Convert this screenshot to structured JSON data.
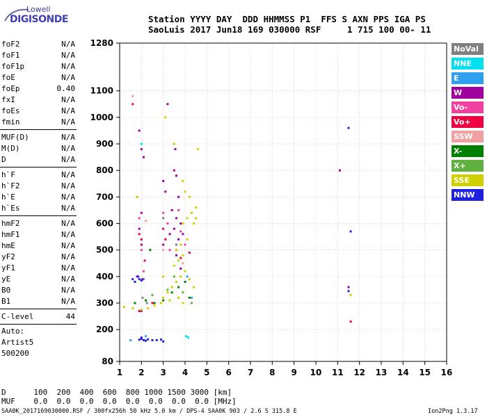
{
  "logo": {
    "line1": "Lowell",
    "line2": "DIGISONDE"
  },
  "header": {
    "line1": "Station YYYY DAY  DDD HHMMSS P1  FFS S AXN PPS IGA PS",
    "line2": "SaoLuis 2017 Jun18 169 030000 RSF     1 715 100 00- 11"
  },
  "params": [
    [
      {
        "label": "foF2",
        "value": "N/A"
      },
      {
        "label": "foF1",
        "value": "N/A"
      },
      {
        "label": "foF1p",
        "value": "N/A"
      },
      {
        "label": "foE",
        "value": "N/A"
      },
      {
        "label": "foEp",
        "value": "0.40"
      },
      {
        "label": "fxI",
        "value": "N/A"
      },
      {
        "label": "foEs",
        "value": "N/A"
      },
      {
        "label": "fmin",
        "value": "N/A"
      }
    ],
    [
      {
        "label": "MUF(D)",
        "value": "N/A"
      },
      {
        "label": "M(D)",
        "value": "N/A"
      },
      {
        "label": "D",
        "value": "N/A"
      }
    ],
    [
      {
        "label": "h`F",
        "value": "N/A"
      },
      {
        "label": "h`F2",
        "value": "N/A"
      },
      {
        "label": "h`E",
        "value": "N/A"
      },
      {
        "label": "h`Es",
        "value": "N/A"
      }
    ],
    [
      {
        "label": "hmF2",
        "value": "N/A"
      },
      {
        "label": "hmF1",
        "value": "N/A"
      },
      {
        "label": "hmE",
        "value": "N/A"
      },
      {
        "label": "yF2",
        "value": "N/A"
      },
      {
        "label": "yF1",
        "value": "N/A"
      },
      {
        "label": "yE",
        "value": "N/A"
      },
      {
        "label": "B0",
        "value": "N/A"
      },
      {
        "label": "B1",
        "value": "N/A"
      }
    ],
    [
      {
        "label": "C-level",
        "value": "44"
      }
    ]
  ],
  "auto": {
    "line1": "Auto:",
    "line2": "Artist5",
    "line3": "500200"
  },
  "legend": [
    {
      "label": "NoVal",
      "color": "#808080"
    },
    {
      "label": "NNE",
      "color": "#00e0f0"
    },
    {
      "label": "E",
      "color": "#30a0f0"
    },
    {
      "label": "W",
      "color": "#a000a0"
    },
    {
      "label": "Vo-",
      "color": "#f040a0"
    },
    {
      "label": "Vo+",
      "color": "#f00040"
    },
    {
      "label": "SSW",
      "color": "#f0a0a0"
    },
    {
      "label": "X-",
      "color": "#008000"
    },
    {
      "label": "X+",
      "color": "#60b040"
    },
    {
      "label": "SSE",
      "color": "#d0d000"
    },
    {
      "label": "NNW",
      "color": "#2020e0"
    }
  ],
  "bottom": {
    "d_row": "D      100  200  400  600  800 1000 1500 3000 [km]",
    "muf_row": "MUF    0.0  0.0  0.0  0.0  0.0  0.0  0.0  0.0 [MHz]"
  },
  "footer": {
    "left": "SAA0K_2017169030000.RSF / 300fx256h 50 kHz 5.0 km / DPS-4 SAA0K 903 / 2.6 S 315.8 E",
    "right": "Ion2Png 1.3.17"
  },
  "chart_data": {
    "type": "scatter",
    "xlabel": "",
    "ylabel": "",
    "xlim": [
      1,
      16
    ],
    "ylim": [
      80,
      1280
    ],
    "x_ticks": [
      "1",
      "2",
      "3",
      "4",
      "5",
      "6",
      "7",
      "8",
      "9",
      "10",
      "11",
      "12",
      "13",
      "14",
      "15",
      "16"
    ],
    "y_ticks": [
      "80",
      "200",
      "300",
      "400",
      "500",
      "600",
      "700",
      "800",
      "900",
      "1000",
      "1100",
      "1280"
    ],
    "y_tick_values": [
      80,
      200,
      300,
      400,
      500,
      600,
      700,
      800,
      900,
      1000,
      1100,
      1280
    ],
    "grid": true,
    "series": [
      {
        "name": "NoVal",
        "values": [
          [
            2.05,
            320
          ],
          [
            2.25,
            300
          ],
          [
            3.0,
            620
          ],
          [
            3.6,
            520
          ]
        ]
      },
      {
        "name": "NNE",
        "values": [
          [
            2.0,
            900
          ],
          [
            4.05,
            175
          ],
          [
            4.15,
            170
          ]
        ]
      },
      {
        "name": "E",
        "values": [
          [
            1.5,
            160
          ],
          [
            2.2,
            175
          ],
          [
            2.1,
            390
          ],
          [
            4.1,
            400
          ],
          [
            4.3,
            320
          ]
        ]
      },
      {
        "name": "W",
        "values": [
          [
            1.9,
            950
          ],
          [
            2.0,
            880
          ],
          [
            2.1,
            850
          ],
          [
            1.8,
            700
          ],
          [
            2.0,
            640
          ],
          [
            1.9,
            580
          ],
          [
            2.0,
            520
          ],
          [
            1.8,
            400
          ],
          [
            2.05,
            390
          ],
          [
            3.0,
            760
          ],
          [
            3.1,
            720
          ],
          [
            3.5,
            800
          ],
          [
            3.6,
            780
          ],
          [
            3.7,
            700
          ],
          [
            3.4,
            650
          ],
          [
            3.6,
            620
          ],
          [
            3.8,
            600
          ],
          [
            3.5,
            580
          ],
          [
            3.3,
            560
          ],
          [
            3.9,
            560
          ],
          [
            3.7,
            540
          ],
          [
            3.0,
            520
          ],
          [
            3.6,
            480
          ],
          [
            3.8,
            430
          ],
          [
            11.5,
            360
          ],
          [
            11.1,
            800
          ],
          [
            2.0,
            270
          ],
          [
            3.2,
            1050
          ],
          [
            3.55,
            880
          ]
        ]
      },
      {
        "name": "Vo-",
        "values": [
          [
            1.9,
            620
          ],
          [
            2.0,
            500
          ],
          [
            2.1,
            420
          ],
          [
            3.0,
            640
          ],
          [
            3.2,
            600
          ],
          [
            3.7,
            650
          ],
          [
            3.8,
            570
          ],
          [
            4.0,
            520
          ],
          [
            3.3,
            500
          ]
        ]
      },
      {
        "name": "Vo+",
        "values": [
          [
            1.6,
            1050
          ],
          [
            1.9,
            560
          ],
          [
            2.0,
            540
          ],
          [
            2.15,
            460
          ],
          [
            3.0,
            580
          ],
          [
            3.1,
            540
          ],
          [
            3.6,
            500
          ],
          [
            3.8,
            470
          ],
          [
            4.2,
            490
          ],
          [
            1.9,
            270
          ],
          [
            11.6,
            230
          ],
          [
            2.5,
            300
          ]
        ]
      },
      {
        "name": "SSW",
        "values": [
          [
            1.6,
            1080
          ],
          [
            2.2,
            610
          ],
          [
            3.0,
            500
          ],
          [
            3.9,
            450
          ]
        ]
      },
      {
        "name": "X-",
        "values": [
          [
            1.7,
            300
          ],
          [
            2.2,
            310
          ],
          [
            2.6,
            300
          ],
          [
            3.0,
            310
          ],
          [
            3.4,
            340
          ],
          [
            3.7,
            360
          ],
          [
            4.0,
            380
          ],
          [
            4.2,
            320
          ],
          [
            2.4,
            500
          ]
        ]
      },
      {
        "name": "X+",
        "values": [
          [
            2.5,
            330
          ],
          [
            3.2,
            350
          ],
          [
            3.9,
            340
          ],
          [
            4.3,
            300
          ],
          [
            3.5,
            400
          ]
        ]
      },
      {
        "name": "SSE",
        "values": [
          [
            1.2,
            285
          ],
          [
            1.6,
            280
          ],
          [
            2.0,
            275
          ],
          [
            2.3,
            280
          ],
          [
            2.6,
            290
          ],
          [
            2.9,
            300
          ],
          [
            3.0,
            320
          ],
          [
            3.2,
            340
          ],
          [
            3.4,
            360
          ],
          [
            3.6,
            380
          ],
          [
            3.8,
            400
          ],
          [
            4.0,
            420
          ],
          [
            4.2,
            390
          ],
          [
            3.3,
            310
          ],
          [
            3.7,
            320
          ],
          [
            3.9,
            300
          ],
          [
            4.4,
            360
          ],
          [
            3.5,
            440
          ],
          [
            3.7,
            460
          ],
          [
            3.9,
            480
          ],
          [
            3.6,
            500
          ],
          [
            3.8,
            520
          ],
          [
            4.1,
            540
          ],
          [
            3.9,
            600
          ],
          [
            4.1,
            620
          ],
          [
            4.3,
            640
          ],
          [
            4.5,
            660
          ],
          [
            4.5,
            620
          ],
          [
            4.2,
            700
          ],
          [
            3.9,
            760
          ],
          [
            4.0,
            720
          ],
          [
            4.4,
            600
          ],
          [
            4.6,
            880
          ],
          [
            3.5,
            900
          ],
          [
            3.1,
            1000
          ],
          [
            1.8,
            700
          ],
          [
            11.6,
            330
          ],
          [
            3.0,
            400
          ]
        ]
      },
      {
        "name": "NNW",
        "values": [
          [
            1.6,
            390
          ],
          [
            1.7,
            380
          ],
          [
            1.85,
            400
          ],
          [
            1.9,
            390
          ],
          [
            2.0,
            385
          ],
          [
            1.9,
            162
          ],
          [
            2.0,
            165
          ],
          [
            2.1,
            160
          ],
          [
            2.2,
            158
          ],
          [
            2.3,
            163
          ],
          [
            2.5,
            160
          ],
          [
            2.7,
            160
          ],
          [
            2.9,
            162
          ],
          [
            3.0,
            155
          ],
          [
            11.5,
            960
          ],
          [
            11.6,
            570
          ],
          [
            11.5,
            345
          ],
          [
            2.0,
            170
          ]
        ]
      }
    ]
  }
}
